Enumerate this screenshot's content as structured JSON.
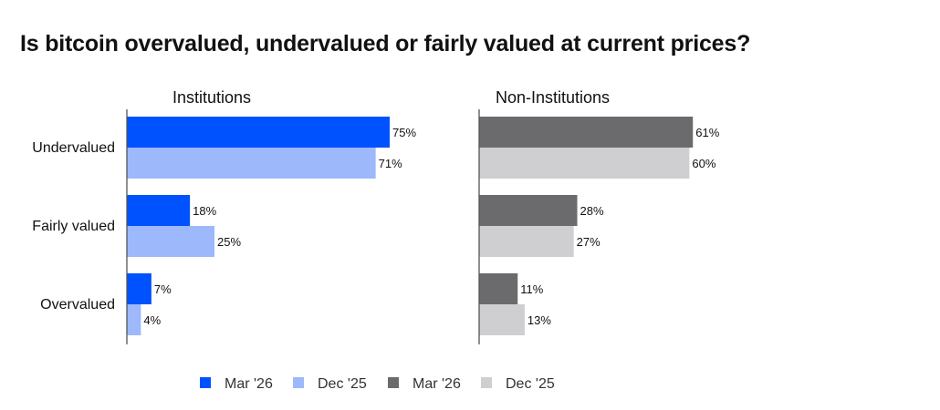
{
  "title": "Is bitcoin overvalued, undervalued or fairly valued at current prices?",
  "chart_data": {
    "type": "bar",
    "orientation": "horizontal",
    "title": "Is bitcoin overvalued, undervalued or fairly valued at current prices?",
    "categories": [
      "Undervalued",
      "Fairly valued",
      "Overvalued"
    ],
    "value_suffix": "%",
    "xlim": [
      0,
      100
    ],
    "grid": false,
    "legend_position": "bottom",
    "panels": [
      {
        "name": "Institutions",
        "series": [
          {
            "name": "Mar '26",
            "color": "#0052FF",
            "values": [
              75,
              18,
              7
            ]
          },
          {
            "name": "Dec '25",
            "color": "#9DB8FB",
            "values": [
              71,
              25,
              4
            ]
          }
        ]
      },
      {
        "name": "Non-Institutions",
        "series": [
          {
            "name": "Mar '26",
            "color": "#6B6B6E",
            "values": [
              61,
              28,
              11
            ]
          },
          {
            "name": "Dec '25",
            "color": "#CFCFD1",
            "values": [
              60,
              27,
              13
            ]
          }
        ]
      }
    ]
  }
}
